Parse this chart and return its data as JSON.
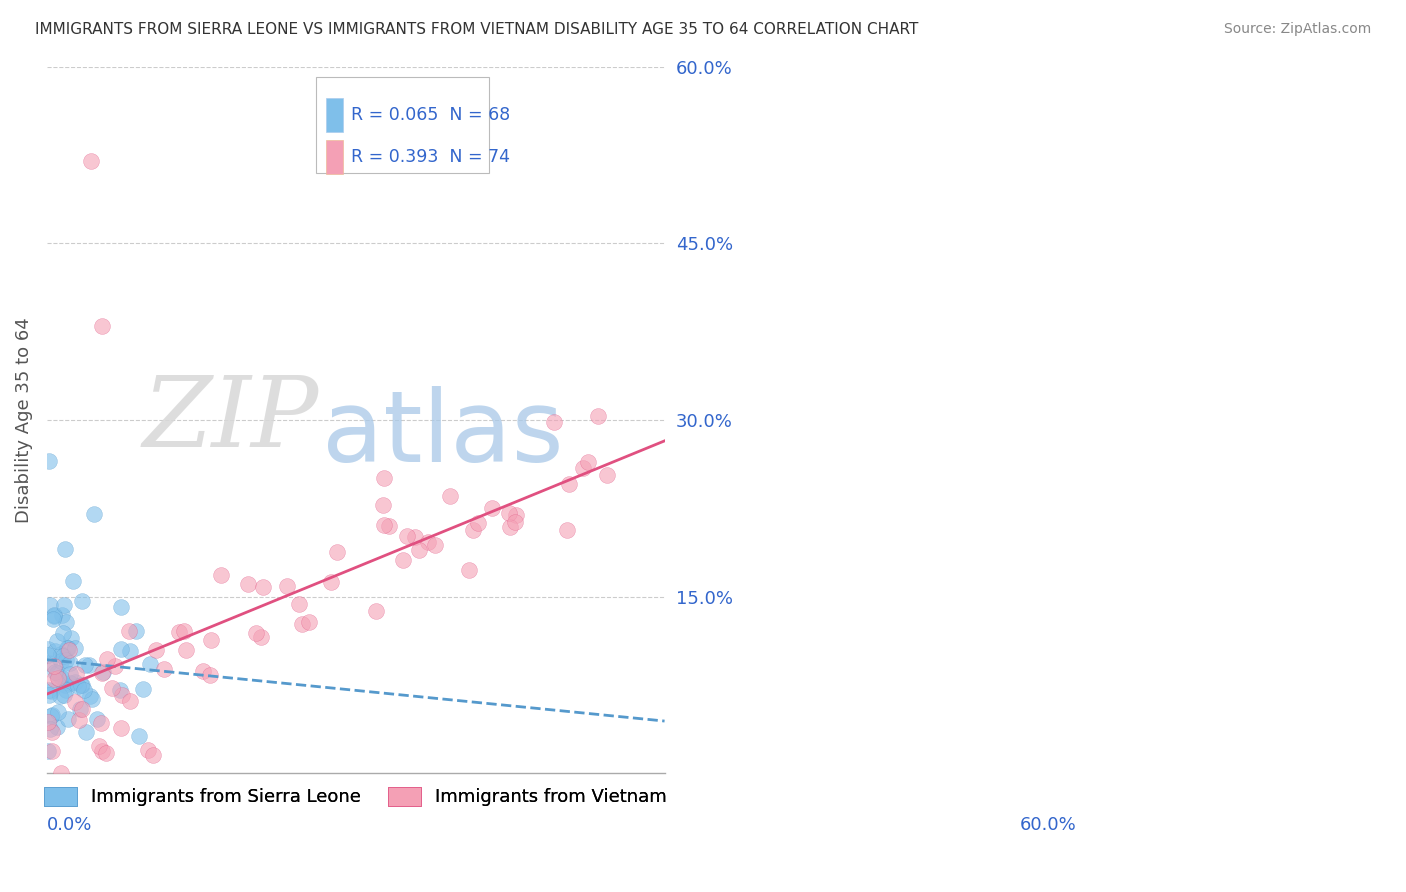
{
  "title": "IMMIGRANTS FROM SIERRA LEONE VS IMMIGRANTS FROM VIETNAM DISABILITY AGE 35 TO 64 CORRELATION CHART",
  "source": "Source: ZipAtlas.com",
  "ylabel": "Disability Age 35 to 64",
  "xmin": 0.0,
  "xmax": 0.6,
  "ymin": 0.0,
  "ymax": 0.6,
  "yticks": [
    0.0,
    0.15,
    0.3,
    0.45,
    0.6
  ],
  "ytick_labels": [
    "",
    "15.0%",
    "30.0%",
    "45.0%",
    "60.0%"
  ],
  "watermark_zip": "ZIP",
  "watermark_atlas": "atlas",
  "series1_name": "Immigrants from Sierra Leone",
  "series1_color": "#7fbfea",
  "series1_R": 0.065,
  "series1_N": 68,
  "series2_name": "Immigrants from Vietnam",
  "series2_color": "#f4a0b5",
  "series2_R": 0.393,
  "series2_N": 74,
  "trendline1_color": "#5599cc",
  "trendline2_color": "#e05080",
  "background_color": "#ffffff",
  "grid_color": "#cccccc",
  "label_color": "#3366cc",
  "right_axis_color": "#5599cc"
}
